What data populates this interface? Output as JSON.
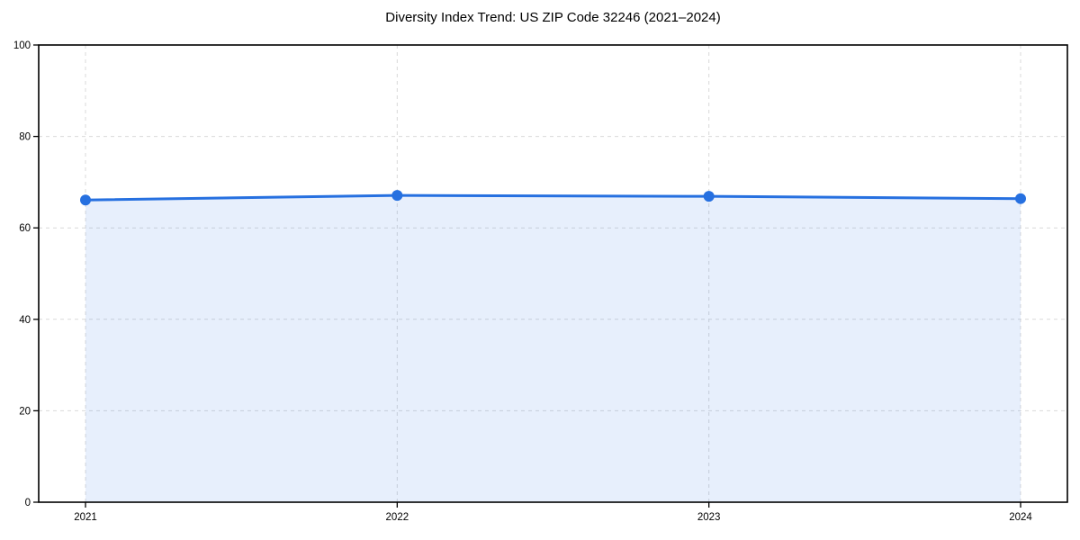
{
  "figure": {
    "background_color": "#ffffff"
  },
  "chart_data": {
    "type": "area",
    "title": "Diversity Index Trend: US ZIP Code 32246 (2021–2024)",
    "categories": [
      "2021",
      "2022",
      "2023",
      "2024"
    ],
    "series": [
      {
        "name": "Diversity Index",
        "values": [
          66.1,
          67.1,
          66.9,
          66.4
        ]
      }
    ],
    "xlabel": "",
    "ylabel": "",
    "ylim": [
      0,
      100
    ],
    "yticks": [
      0,
      20,
      40,
      60,
      80,
      100
    ],
    "grid": "dashed",
    "legend_position": "none",
    "line_color": "#2670e0",
    "marker_color": "#2670e0",
    "fill_color": "#2670e0",
    "fill_opacity": 0.11,
    "grid_color": "#d9d9d9",
    "spine_color": "#000000",
    "tick_text_color": "#000000"
  }
}
